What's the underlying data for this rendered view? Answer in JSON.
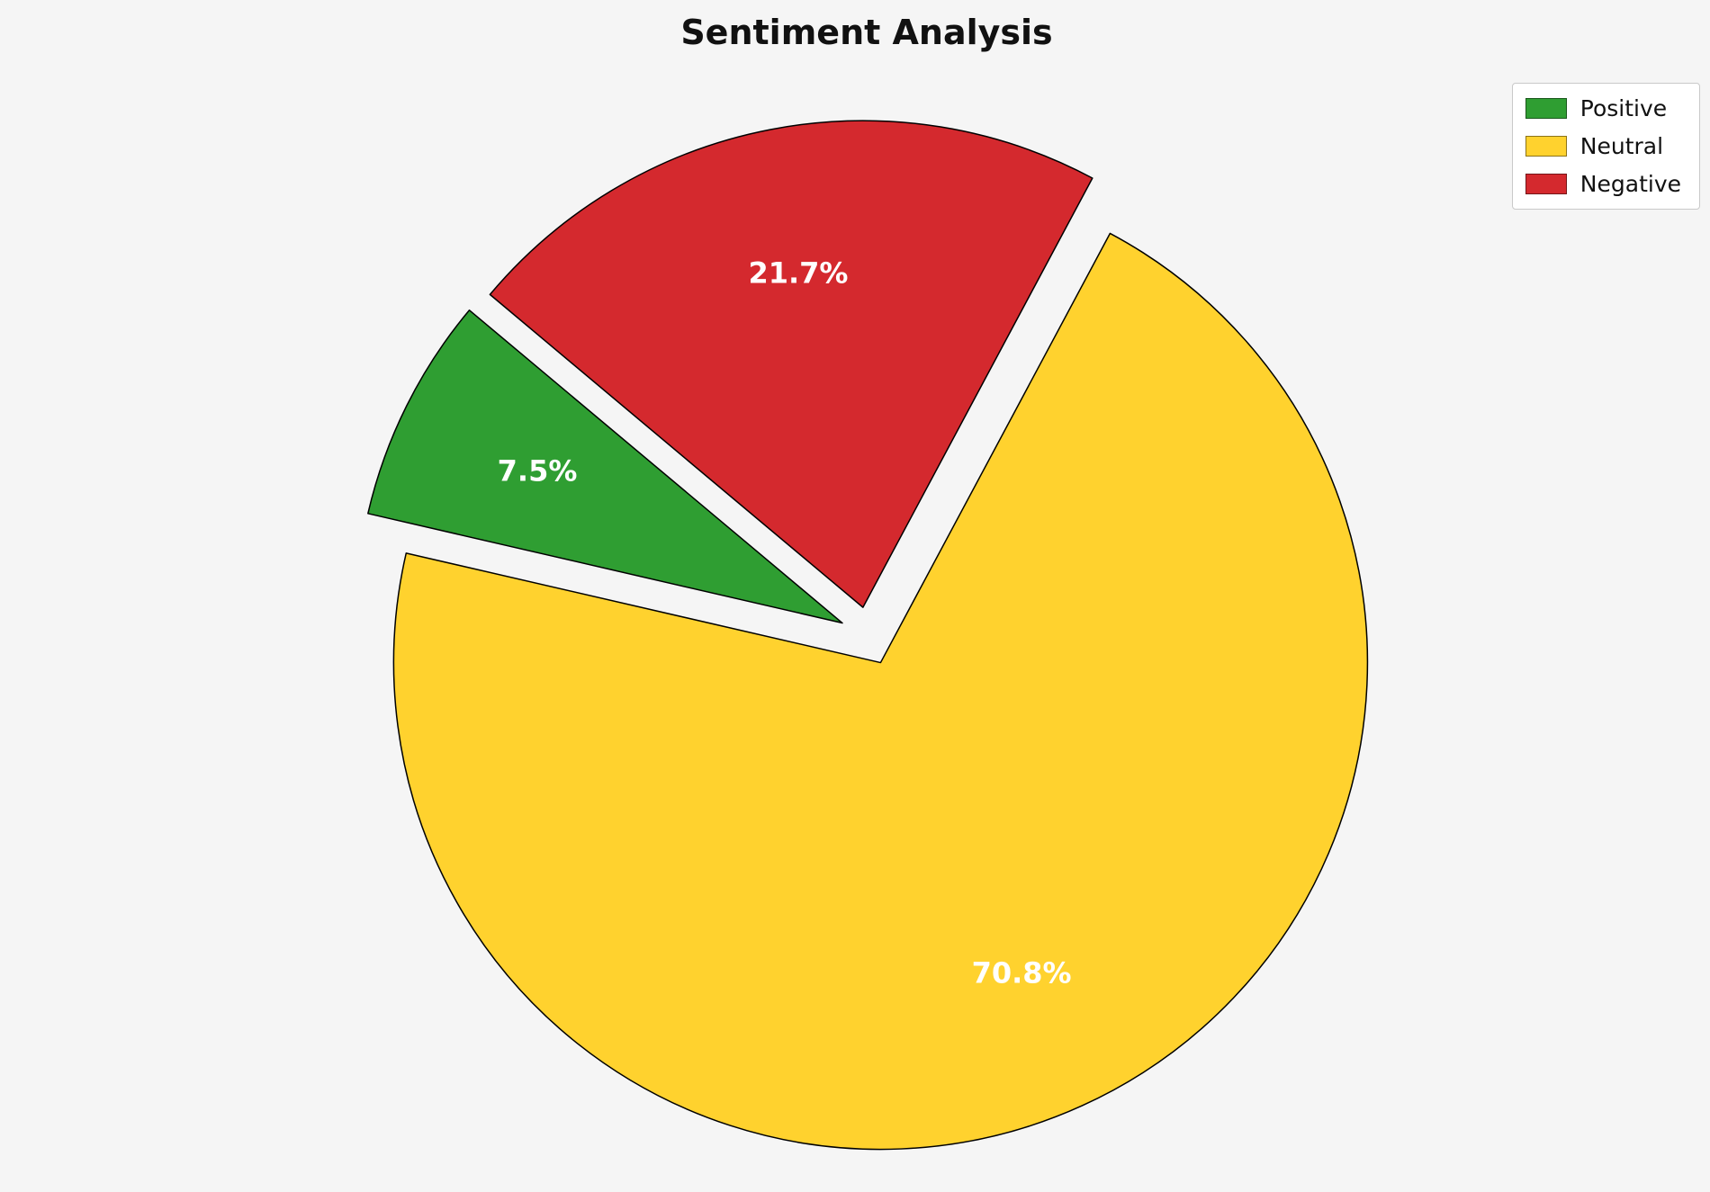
{
  "chart_data": {
    "type": "pie",
    "title": "Sentiment Analysis",
    "slices": [
      {
        "label": "Positive",
        "value": 7.5,
        "pct_label": "7.5%",
        "color": "#2f9e32"
      },
      {
        "label": "Neutral",
        "value": 70.8,
        "pct_label": "70.8%",
        "color": "#ffd22e"
      },
      {
        "label": "Negative",
        "value": 21.7,
        "pct_label": "21.7%",
        "color": "#d4292e"
      }
    ],
    "start_angle": 140,
    "counterclockwise": true,
    "explode": 0.06,
    "pct_distance": 0.7,
    "edge_color": "#000000",
    "pct_label_color": "#ffffff",
    "legend_position": "upper right",
    "background_color": "#f5f5f5"
  }
}
